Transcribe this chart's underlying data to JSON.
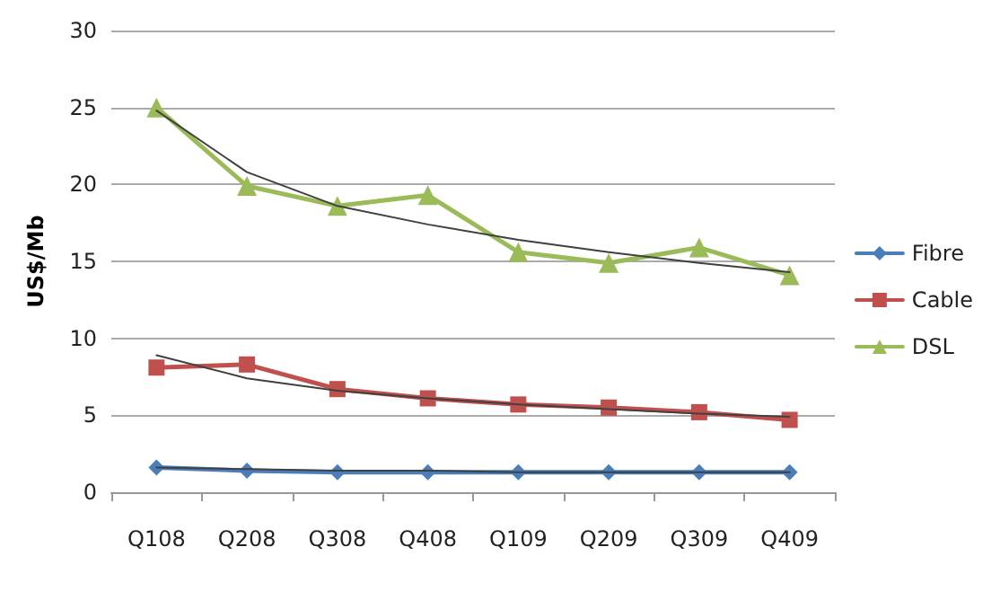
{
  "chart_data": {
    "type": "line",
    "ylabel": "US$/Mb",
    "categories": [
      "Q108",
      "Q208",
      "Q308",
      "Q408",
      "Q109",
      "Q209",
      "Q309",
      "Q409"
    ],
    "series": [
      {
        "name": "Fibre",
        "color": "#4a7ebb",
        "marker": "diamond",
        "values": [
          1.6,
          1.4,
          1.3,
          1.3,
          1.3,
          1.3,
          1.3,
          1.3
        ]
      },
      {
        "name": "Cable",
        "color": "#c0504d",
        "marker": "square",
        "values": [
          8.1,
          8.3,
          6.7,
          6.1,
          5.7,
          5.5,
          5.2,
          4.7
        ]
      },
      {
        "name": "DSL",
        "color": "#9bbb59",
        "marker": "triangle",
        "values": [
          25,
          19.9,
          18.6,
          19.3,
          15.6,
          14.9,
          15.9,
          14.1
        ]
      },
      {
        "type": "line",
        "color": "#404040",
        "marker": "none",
        "x": [
          "Q108",
          "Q208",
          "Q308",
          "Q408",
          "Q109",
          "Q209",
          "Q309",
          "Q409"
        ],
        "values": [
          1.6,
          1.5,
          1.4,
          1.4,
          1.3,
          1.3,
          1.3,
          1.3
        ]
      },
      {
        "type": "line",
        "color": "#404040",
        "marker": "none",
        "x": [
          "Q108",
          "Q208",
          "Q308",
          "Q408",
          "Q109",
          "Q209",
          "Q309",
          "Q409"
        ],
        "values": [
          8.9,
          7.4,
          6.6,
          6.1,
          5.7,
          5.4,
          5.1,
          4.9
        ]
      },
      {
        "type": "line",
        "color": "#404040",
        "marker": "none",
        "x": [
          "Q108",
          "Q208",
          "Q308",
          "Q408",
          "Q109",
          "Q209",
          "Q309",
          "Q409"
        ],
        "values": [
          24.8,
          20.8,
          18.6,
          17.4,
          16.4,
          15.6,
          14.9,
          14.3
        ]
      }
    ],
    "ylim": [
      0,
      30
    ],
    "yticks": [
      0,
      5,
      10,
      15,
      20,
      25,
      30
    ],
    "grid": "y",
    "legend": "right"
  }
}
